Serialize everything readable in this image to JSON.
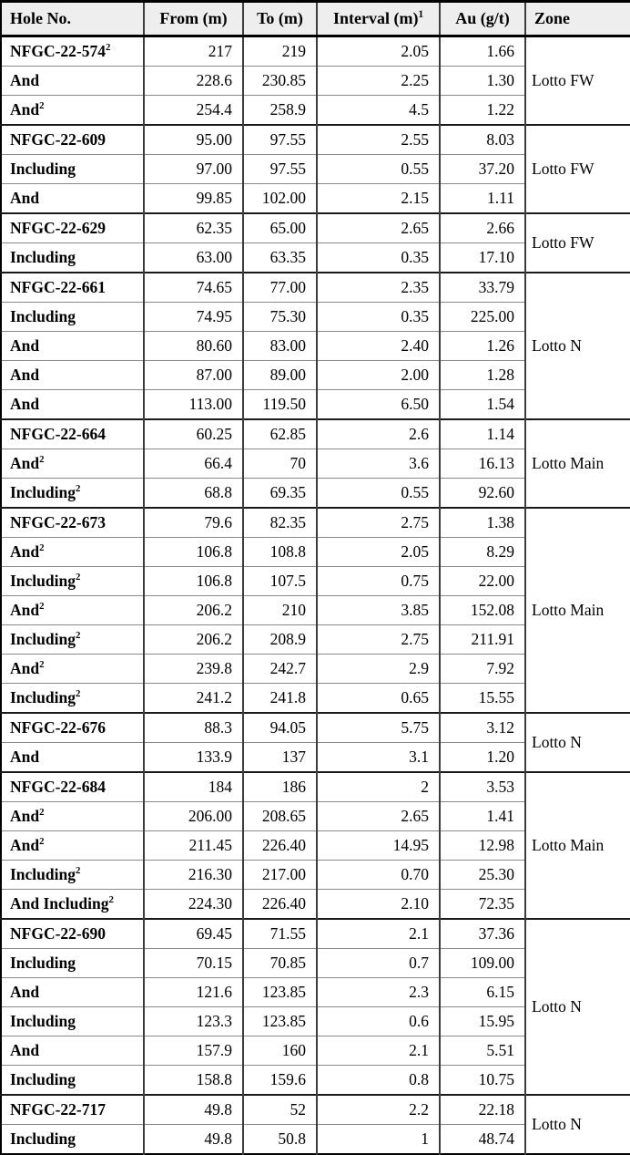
{
  "colors": {
    "header_bg": "#eeeeee",
    "border": "#000000",
    "row_line": "#8a8a8a"
  },
  "header": {
    "hole": "Hole No.",
    "from": "From (m)",
    "to": "To (m)",
    "interval": "Interval (m)",
    "interval_sup": "1",
    "au": "Au (g/t)",
    "zone": "Zone"
  },
  "groups": [
    {
      "zone": "Lotto FW",
      "rows": [
        {
          "label": "NFGC-22-574",
          "sup": "2",
          "from": "217",
          "to": "219",
          "interval": "2.05",
          "au": "1.66"
        },
        {
          "label": "And",
          "sup": "",
          "from": "228.6",
          "to": "230.85",
          "interval": "2.25",
          "au": "1.30"
        },
        {
          "label": "And",
          "sup": "2",
          "from": "254.4",
          "to": "258.9",
          "interval": "4.5",
          "au": "1.22"
        }
      ]
    },
    {
      "zone": "Lotto FW",
      "rows": [
        {
          "label": "NFGC-22-609",
          "sup": "",
          "from": "95.00",
          "to": "97.55",
          "interval": "2.55",
          "au": "8.03"
        },
        {
          "label": "Including",
          "sup": "",
          "from": "97.00",
          "to": "97.55",
          "interval": "0.55",
          "au": "37.20"
        },
        {
          "label": "And",
          "sup": "",
          "from": "99.85",
          "to": "102.00",
          "interval": "2.15",
          "au": "1.11"
        }
      ]
    },
    {
      "zone": "Lotto FW",
      "rows": [
        {
          "label": "NFGC-22-629",
          "sup": "",
          "from": "62.35",
          "to": "65.00",
          "interval": "2.65",
          "au": "2.66"
        },
        {
          "label": "Including",
          "sup": "",
          "from": "63.00",
          "to": "63.35",
          "interval": "0.35",
          "au": "17.10"
        }
      ]
    },
    {
      "zone": "Lotto N",
      "rows": [
        {
          "label": "NFGC-22-661",
          "sup": "",
          "from": "74.65",
          "to": "77.00",
          "interval": "2.35",
          "au": "33.79"
        },
        {
          "label": "Including",
          "sup": "",
          "from": "74.95",
          "to": "75.30",
          "interval": "0.35",
          "au": "225.00"
        },
        {
          "label": "And",
          "sup": "",
          "from": "80.60",
          "to": "83.00",
          "interval": "2.40",
          "au": "1.26"
        },
        {
          "label": "And",
          "sup": "",
          "from": "87.00",
          "to": "89.00",
          "interval": "2.00",
          "au": "1.28"
        },
        {
          "label": "And",
          "sup": "",
          "from": "113.00",
          "to": "119.50",
          "interval": "6.50",
          "au": "1.54"
        }
      ]
    },
    {
      "zone": "Lotto Main",
      "rows": [
        {
          "label": "NFGC-22-664",
          "sup": "",
          "from": "60.25",
          "to": "62.85",
          "interval": "2.6",
          "au": "1.14"
        },
        {
          "label": "And",
          "sup": "2",
          "from": "66.4",
          "to": "70",
          "interval": "3.6",
          "au": "16.13"
        },
        {
          "label": "Including",
          "sup": "2",
          "from": "68.8",
          "to": "69.35",
          "interval": "0.55",
          "au": "92.60"
        }
      ]
    },
    {
      "zone": "Lotto Main",
      "rows": [
        {
          "label": "NFGC-22-673",
          "sup": "",
          "from": "79.6",
          "to": "82.35",
          "interval": "2.75",
          "au": "1.38"
        },
        {
          "label": "And",
          "sup": "2",
          "from": "106.8",
          "to": "108.8",
          "interval": "2.05",
          "au": "8.29"
        },
        {
          "label": "Including",
          "sup": "2",
          "from": "106.8",
          "to": "107.5",
          "interval": "0.75",
          "au": "22.00"
        },
        {
          "label": "And",
          "sup": "2",
          "from": "206.2",
          "to": "210",
          "interval": "3.85",
          "au": "152.08"
        },
        {
          "label": "Including",
          "sup": "2",
          "from": "206.2",
          "to": "208.9",
          "interval": "2.75",
          "au": "211.91"
        },
        {
          "label": "And",
          "sup": "2",
          "from": "239.8",
          "to": "242.7",
          "interval": "2.9",
          "au": "7.92"
        },
        {
          "label": "Including",
          "sup": "2",
          "from": "241.2",
          "to": "241.8",
          "interval": "0.65",
          "au": "15.55"
        }
      ]
    },
    {
      "zone": "Lotto N",
      "rows": [
        {
          "label": "NFGC-22-676",
          "sup": "",
          "from": "88.3",
          "to": "94.05",
          "interval": "5.75",
          "au": "3.12"
        },
        {
          "label": "And",
          "sup": "",
          "from": "133.9",
          "to": "137",
          "interval": "3.1",
          "au": "1.20"
        }
      ]
    },
    {
      "zone": "Lotto Main",
      "rows": [
        {
          "label": "NFGC-22-684",
          "sup": "",
          "from": "184",
          "to": "186",
          "interval": "2",
          "au": "3.53"
        },
        {
          "label": "And",
          "sup": "2",
          "from": "206.00",
          "to": "208.65",
          "interval": "2.65",
          "au": "1.41"
        },
        {
          "label": "And",
          "sup": "2",
          "from": "211.45",
          "to": "226.40",
          "interval": "14.95",
          "au": "12.98"
        },
        {
          "label": "Including",
          "sup": "2",
          "from": "216.30",
          "to": "217.00",
          "interval": "0.70",
          "au": "25.30"
        },
        {
          "label": "And Including",
          "sup": "2",
          "from": "224.30",
          "to": "226.40",
          "interval": "2.10",
          "au": "72.35"
        }
      ]
    },
    {
      "zone": "Lotto N",
      "rows": [
        {
          "label": "NFGC-22-690",
          "sup": "",
          "from": "69.45",
          "to": "71.55",
          "interval": "2.1",
          "au": "37.36"
        },
        {
          "label": "Including",
          "sup": "",
          "from": "70.15",
          "to": "70.85",
          "interval": "0.7",
          "au": "109.00"
        },
        {
          "label": "And",
          "sup": "",
          "from": "121.6",
          "to": "123.85",
          "interval": "2.3",
          "au": "6.15"
        },
        {
          "label": "Including",
          "sup": "",
          "from": "123.3",
          "to": "123.85",
          "interval": "0.6",
          "au": "15.95"
        },
        {
          "label": "And",
          "sup": "",
          "from": "157.9",
          "to": "160",
          "interval": "2.1",
          "au": "5.51"
        },
        {
          "label": "Including",
          "sup": "",
          "from": "158.8",
          "to": "159.6",
          "interval": "0.8",
          "au": "10.75"
        }
      ]
    },
    {
      "zone": "Lotto N",
      "rows": [
        {
          "label": "NFGC-22-717",
          "sup": "",
          "from": "49.8",
          "to": "52",
          "interval": "2.2",
          "au": "22.18"
        },
        {
          "label": "Including",
          "sup": "",
          "from": "49.8",
          "to": "50.8",
          "interval": "1",
          "au": "48.74"
        }
      ]
    }
  ]
}
